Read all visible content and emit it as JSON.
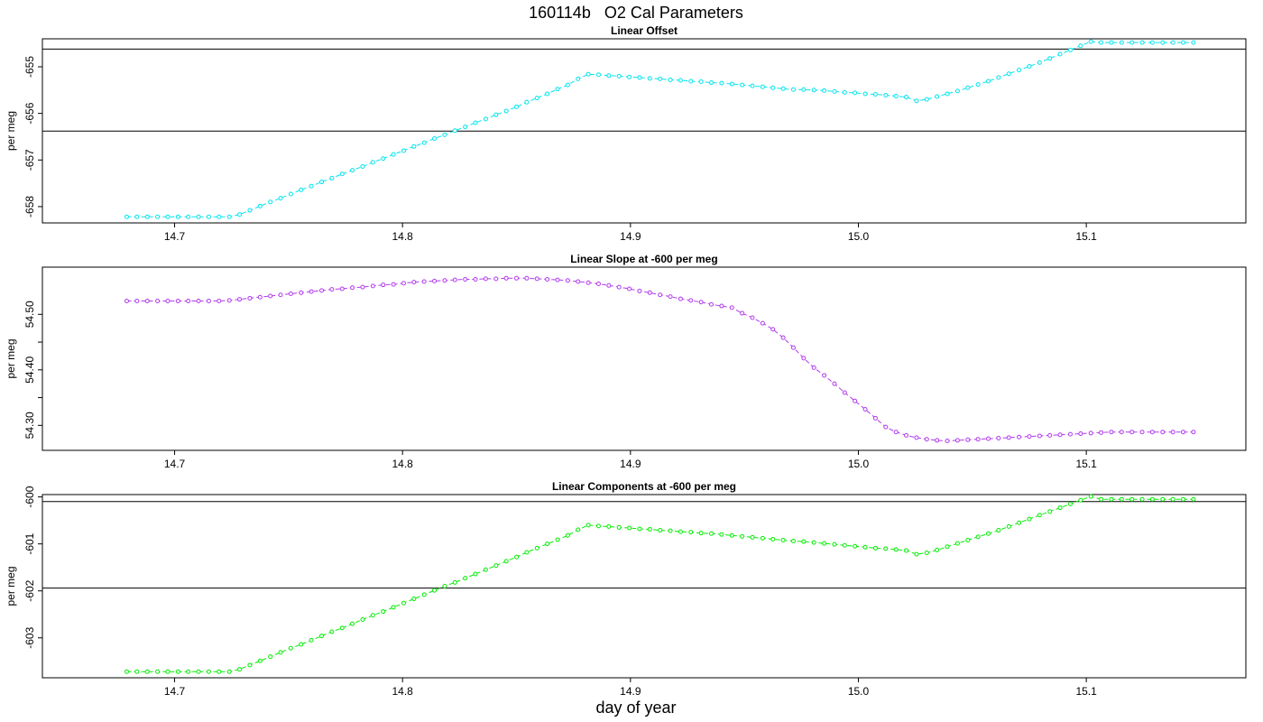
{
  "page": {
    "main_title": "160114b   O2 Cal Parameters",
    "xlabel": "day of year"
  },
  "chart_data": [
    {
      "type": "line",
      "title": "Linear Offset",
      "ylabel": "per meg",
      "xlim": [
        14.642,
        15.17
      ],
      "ylim": [
        -658.35,
        -654.4
      ],
      "xticks": [
        14.7,
        14.8,
        14.9,
        15.0,
        15.1
      ],
      "yticks": [
        -658,
        -657,
        -656,
        -655
      ],
      "hlines": [
        -654.62,
        -656.38
      ],
      "color": "#00e5ee",
      "series": [
        {
          "x": [
            14.679,
            14.6835,
            14.688,
            14.6925,
            14.697,
            14.7015,
            14.706,
            14.7105,
            14.715,
            14.7195,
            14.724,
            14.7285,
            14.733,
            14.7375,
            14.742,
            14.7465,
            14.751,
            14.7555,
            14.76,
            14.7645,
            14.769,
            14.7735,
            14.778,
            14.7825,
            14.787,
            14.7915,
            14.796,
            14.8005,
            14.805,
            14.8095,
            14.814,
            14.8185,
            14.823,
            14.8275,
            14.832,
            14.8365,
            14.841,
            14.8455,
            14.85,
            14.8545,
            14.859,
            14.8635,
            14.868,
            14.8725,
            14.877,
            14.8815,
            14.886,
            14.8905,
            14.895,
            14.8995,
            14.904,
            14.9085,
            14.913,
            14.9175,
            14.922,
            14.9265,
            14.931,
            14.9355,
            14.94,
            14.9445,
            14.949,
            14.9535,
            14.958,
            14.9625,
            14.967,
            14.9715,
            14.976,
            14.9805,
            14.985,
            14.9895,
            14.994,
            14.9985,
            15.003,
            15.0075,
            15.012,
            15.0165,
            15.021,
            15.0255,
            15.03,
            15.0345,
            15.039,
            15.0435,
            15.048,
            15.0525,
            15.057,
            15.0615,
            15.066,
            15.0705,
            15.075,
            15.0795,
            15.084,
            15.0885,
            15.093,
            15.0975,
            15.102,
            15.1065,
            15.111,
            15.1155,
            15.12,
            15.1245,
            15.129,
            15.1335,
            15.138,
            15.1425,
            15.147
          ],
          "values": [
            -658.22,
            -658.22,
            -658.22,
            -658.22,
            -658.22,
            -658.22,
            -658.22,
            -658.22,
            -658.22,
            -658.22,
            -658.22,
            -658.17,
            -658.08,
            -657.99,
            -657.9,
            -657.82,
            -657.73,
            -657.64,
            -657.56,
            -657.47,
            -657.39,
            -657.3,
            -657.22,
            -657.14,
            -657.05,
            -656.97,
            -656.88,
            -656.8,
            -656.71,
            -656.63,
            -656.54,
            -656.46,
            -656.37,
            -656.29,
            -656.2,
            -656.12,
            -656.03,
            -655.95,
            -655.86,
            -655.76,
            -655.67,
            -655.58,
            -655.48,
            -655.39,
            -655.26,
            -655.16,
            -655.17,
            -655.19,
            -655.2,
            -655.22,
            -655.23,
            -655.25,
            -655.26,
            -655.28,
            -655.29,
            -655.31,
            -655.32,
            -655.34,
            -655.35,
            -655.37,
            -655.39,
            -655.41,
            -655.43,
            -655.45,
            -655.47,
            -655.49,
            -655.49,
            -655.5,
            -655.51,
            -655.53,
            -655.55,
            -655.56,
            -655.58,
            -655.59,
            -655.61,
            -655.63,
            -655.65,
            -655.73,
            -655.7,
            -655.64,
            -655.58,
            -655.52,
            -655.45,
            -655.38,
            -655.31,
            -655.23,
            -655.15,
            -655.07,
            -654.99,
            -654.91,
            -654.82,
            -654.73,
            -654.64,
            -654.55,
            -654.46,
            -654.48,
            -654.48,
            -654.48,
            -654.48,
            -654.48,
            -654.48,
            -654.48,
            -654.48,
            -654.48,
            -654.48
          ]
        }
      ]
    },
    {
      "type": "line",
      "title": "Linear Slope at -600 per meg",
      "ylabel": "per meg",
      "xlim": [
        14.642,
        15.17
      ],
      "ylim": [
        54.255,
        54.585
      ],
      "xticks": [
        14.7,
        14.8,
        14.9,
        15.0,
        15.1
      ],
      "yticks": [
        54.3,
        54.4,
        54.5
      ],
      "yticklabels": [
        "54.30",
        "54.40",
        "54.50"
      ],
      "yminorticks": [
        54.35,
        54.45
      ],
      "hlines": [],
      "color": "#b23aee",
      "series": [
        {
          "x": [
            14.679,
            14.6835,
            14.688,
            14.6925,
            14.697,
            14.7015,
            14.706,
            14.7105,
            14.715,
            14.7195,
            14.724,
            14.7285,
            14.733,
            14.7375,
            14.742,
            14.7465,
            14.751,
            14.7555,
            14.76,
            14.7645,
            14.769,
            14.7735,
            14.778,
            14.7825,
            14.787,
            14.7915,
            14.796,
            14.8005,
            14.805,
            14.8095,
            14.814,
            14.8185,
            14.823,
            14.8275,
            14.832,
            14.8365,
            14.841,
            14.8455,
            14.85,
            14.8545,
            14.859,
            14.8635,
            14.868,
            14.8725,
            14.877,
            14.8815,
            14.886,
            14.8905,
            14.895,
            14.8995,
            14.904,
            14.9085,
            14.913,
            14.9175,
            14.922,
            14.9265,
            14.931,
            14.9355,
            14.94,
            14.9445,
            14.949,
            14.9535,
            14.958,
            14.9625,
            14.967,
            14.9715,
            14.976,
            14.9805,
            14.985,
            14.9895,
            14.994,
            14.9985,
            15.003,
            15.0075,
            15.012,
            15.0165,
            15.021,
            15.0255,
            15.03,
            15.0345,
            15.039,
            15.0435,
            15.048,
            15.0525,
            15.057,
            15.0615,
            15.066,
            15.0705,
            15.075,
            15.0795,
            15.084,
            15.0885,
            15.093,
            15.0975,
            15.102,
            15.1065,
            15.111,
            15.1155,
            15.12,
            15.1245,
            15.129,
            15.1335,
            15.138,
            15.1425,
            15.147
          ],
          "values": [
            54.524,
            54.524,
            54.524,
            54.524,
            54.524,
            54.524,
            54.524,
            54.524,
            54.524,
            54.524,
            54.525,
            54.527,
            54.529,
            54.531,
            54.533,
            54.535,
            54.537,
            54.539,
            54.541,
            54.543,
            54.545,
            54.546,
            54.548,
            54.549,
            54.551,
            54.553,
            54.554,
            54.556,
            54.558,
            54.559,
            54.56,
            54.561,
            54.562,
            54.563,
            54.563,
            54.564,
            54.564,
            54.565,
            54.565,
            54.565,
            54.564,
            54.563,
            54.562,
            54.561,
            54.559,
            54.557,
            54.555,
            54.552,
            54.549,
            54.546,
            54.542,
            54.539,
            54.535,
            54.532,
            54.528,
            54.525,
            54.522,
            54.518,
            54.515,
            54.512,
            54.502,
            54.494,
            54.484,
            54.473,
            54.458,
            54.44,
            54.421,
            54.404,
            54.39,
            54.375,
            54.359,
            54.344,
            54.329,
            54.313,
            54.297,
            54.288,
            54.282,
            54.278,
            54.275,
            54.273,
            54.272,
            54.273,
            54.274,
            54.275,
            54.276,
            54.277,
            54.278,
            54.279,
            54.28,
            54.281,
            54.282,
            54.283,
            54.284,
            54.285,
            54.286,
            54.287,
            54.288,
            54.288,
            54.288,
            54.288,
            54.288,
            54.288,
            54.288,
            54.288,
            54.288
          ]
        }
      ]
    },
    {
      "type": "line",
      "title": "Linear Components at -600 per meg",
      "ylabel": "per meg",
      "xlim": [
        14.642,
        15.17
      ],
      "ylim": [
        -603.85,
        -599.95
      ],
      "xticks": [
        14.7,
        14.8,
        14.9,
        15.0,
        15.1
      ],
      "yticks": [
        -603,
        -602,
        -601,
        -600
      ],
      "hlines": [
        -600.1,
        -601.94
      ],
      "color": "#00ee00",
      "series": [
        {
          "x": [
            14.679,
            14.6835,
            14.688,
            14.6925,
            14.697,
            14.7015,
            14.706,
            14.7105,
            14.715,
            14.7195,
            14.724,
            14.7285,
            14.733,
            14.7375,
            14.742,
            14.7465,
            14.751,
            14.7555,
            14.76,
            14.7645,
            14.769,
            14.7735,
            14.778,
            14.7825,
            14.787,
            14.7915,
            14.796,
            14.8005,
            14.805,
            14.8095,
            14.814,
            14.8185,
            14.823,
            14.8275,
            14.832,
            14.8365,
            14.841,
            14.8455,
            14.85,
            14.8545,
            14.859,
            14.8635,
            14.868,
            14.8725,
            14.877,
            14.8815,
            14.886,
            14.8905,
            14.895,
            14.8995,
            14.904,
            14.9085,
            14.913,
            14.9175,
            14.922,
            14.9265,
            14.931,
            14.9355,
            14.94,
            14.9445,
            14.949,
            14.9535,
            14.958,
            14.9625,
            14.967,
            14.9715,
            14.976,
            14.9805,
            14.985,
            14.9895,
            14.994,
            14.9985,
            15.003,
            15.0075,
            15.012,
            15.0165,
            15.021,
            15.0255,
            15.03,
            15.0345,
            15.039,
            15.0435,
            15.048,
            15.0525,
            15.057,
            15.0615,
            15.066,
            15.0705,
            15.075,
            15.0795,
            15.084,
            15.0885,
            15.093,
            15.0975,
            15.102,
            15.1065,
            15.111,
            15.1155,
            15.12,
            15.1245,
            15.129,
            15.1335,
            15.138,
            15.1425,
            15.147
          ],
          "values": [
            -603.72,
            -603.72,
            -603.72,
            -603.72,
            -603.72,
            -603.72,
            -603.72,
            -603.72,
            -603.72,
            -603.72,
            -603.72,
            -603.67,
            -603.58,
            -603.49,
            -603.4,
            -603.31,
            -603.22,
            -603.14,
            -603.05,
            -602.96,
            -602.87,
            -602.79,
            -602.7,
            -602.61,
            -602.52,
            -602.44,
            -602.35,
            -602.26,
            -602.17,
            -602.08,
            -601.99,
            -601.9,
            -601.82,
            -601.73,
            -601.64,
            -601.55,
            -601.46,
            -601.37,
            -601.28,
            -601.18,
            -601.09,
            -601.0,
            -600.91,
            -600.82,
            -600.7,
            -600.6,
            -600.62,
            -600.63,
            -600.65,
            -600.66,
            -600.68,
            -600.69,
            -600.71,
            -600.72,
            -600.74,
            -600.75,
            -600.77,
            -600.78,
            -600.8,
            -600.82,
            -600.84,
            -600.86,
            -600.88,
            -600.9,
            -600.92,
            -600.94,
            -600.95,
            -600.97,
            -600.99,
            -601.01,
            -601.03,
            -601.05,
            -601.07,
            -601.09,
            -601.1,
            -601.12,
            -601.14,
            -601.22,
            -601.19,
            -601.13,
            -601.06,
            -600.99,
            -600.92,
            -600.85,
            -600.78,
            -600.71,
            -600.63,
            -600.55,
            -600.47,
            -600.39,
            -600.31,
            -600.23,
            -600.15,
            -600.07,
            -599.99,
            -600.05,
            -600.05,
            -600.05,
            -600.05,
            -600.05,
            -600.05,
            -600.05,
            -600.05,
            -600.05,
            -600.05
          ]
        }
      ]
    }
  ]
}
